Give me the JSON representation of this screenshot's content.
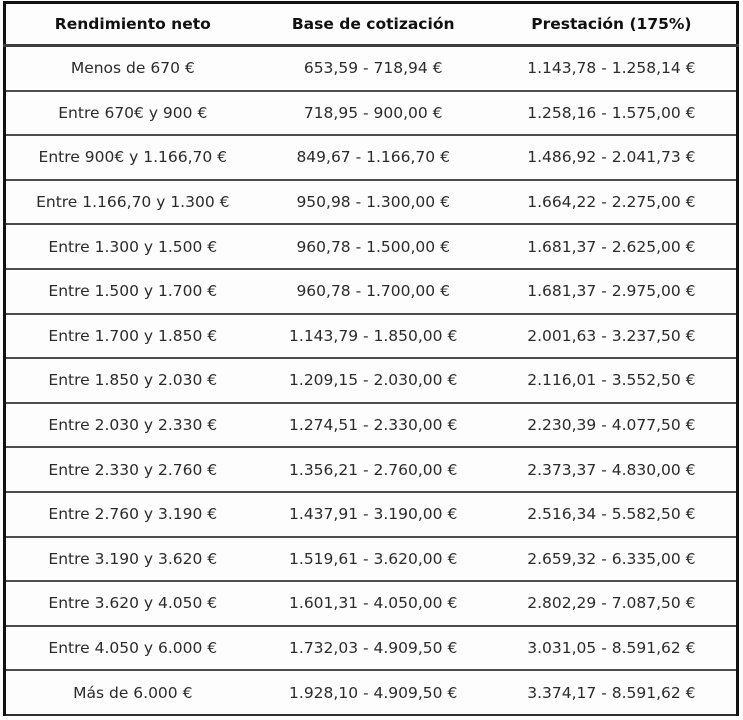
{
  "chart_data": {
    "type": "table",
    "title": "",
    "columns": [
      "Rendimiento neto",
      "Base de cotización",
      "Prestación (175%)"
    ],
    "rows": [
      [
        "Menos de 670 €",
        "653,59 - 718,94 €",
        "1.143,78 - 1.258,14 €"
      ],
      [
        "Entre 670€ y 900 €",
        "718,95 - 900,00 €",
        "1.258,16 - 1.575,00 €"
      ],
      [
        "Entre 900€ y 1.166,70 €",
        "849,67 - 1.166,70 €",
        "1.486,92 - 2.041,73 €"
      ],
      [
        "Entre 1.166,70 y 1.300 €",
        "950,98 - 1.300,00 €",
        "1.664,22 - 2.275,00 €"
      ],
      [
        "Entre 1.300 y 1.500 €",
        "960,78 - 1.500,00 €",
        "1.681,37 - 2.625,00 €"
      ],
      [
        "Entre 1.500 y 1.700 €",
        "960,78 - 1.700,00 €",
        "1.681,37 - 2.975,00 €"
      ],
      [
        "Entre 1.700 y 1.850 €",
        "1.143,79 - 1.850,00 €",
        "2.001,63 - 3.237,50 €"
      ],
      [
        "Entre 1.850 y 2.030 €",
        "1.209,15 - 2.030,00 €",
        "2.116,01 - 3.552,50 €"
      ],
      [
        "Entre 2.030 y 2.330 €",
        "1.274,51 - 2.330,00 €",
        "2.230,39 - 4.077,50 €"
      ],
      [
        "Entre 2.330 y 2.760 €",
        "1.356,21 - 2.760,00 €",
        "2.373,37 - 4.830,00 €"
      ],
      [
        "Entre 2.760 y 3.190 €",
        "1.437,91 - 3.190,00 €",
        "2.516,34 - 5.582,50 €"
      ],
      [
        "Entre 3.190 y 3.620 €",
        "1.519,61 - 3.620,00 €",
        "2.659,32 - 6.335,00 €"
      ],
      [
        "Entre 3.620 y 4.050 €",
        "1.601,31 - 4.050,00 €",
        "2.802,29 - 7.087,50 €"
      ],
      [
        "Entre 4.050 y 6.000 €",
        "1.732,03 - 4.909,50 €",
        "3.031,05 - 8.591,62 €"
      ],
      [
        "Más de 6.000 €",
        "1.928,10 - 4.909,50 €",
        "3.374,17 - 8.591,62 €"
      ]
    ],
    "layout": {
      "legend": "none",
      "grid": "horizontal-separators",
      "column_alignment": [
        "center",
        "center",
        "center"
      ]
    },
    "colors": {
      "outer_border": "#111111",
      "row_separator": "#4d4d4d",
      "header_text": "#111111",
      "body_text": "#2b2b2b",
      "background": "#fdfdfd"
    }
  }
}
